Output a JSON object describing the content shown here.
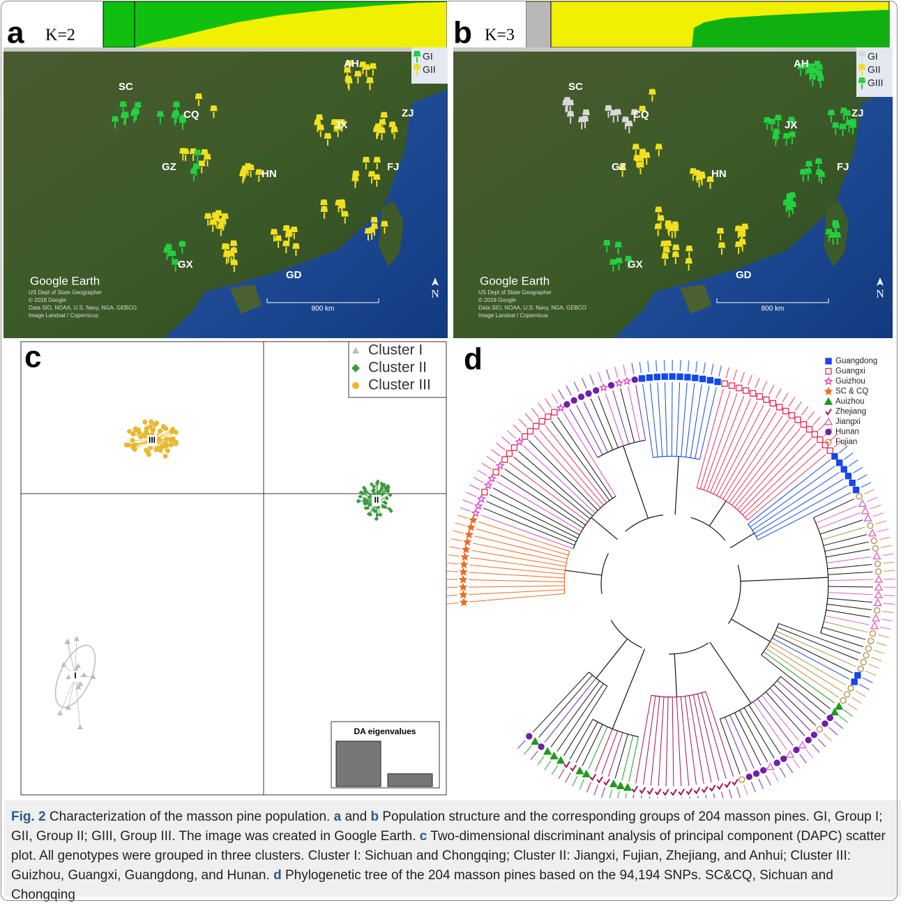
{
  "panels": {
    "a": {
      "label": "a",
      "k": "K=2",
      "regions": [
        "SC",
        "CQ",
        "GZ",
        "HN",
        "AH",
        "JX",
        "ZJ",
        "FJ",
        "GD",
        "GX"
      ],
      "legend": [
        {
          "name": "GI",
          "color": "#22d040"
        },
        {
          "name": "GII",
          "color": "#f0e020"
        }
      ],
      "watermark": "Google Earth",
      "credits": [
        "US Dept of State Geographer",
        "© 2018 Google",
        "Data SIO, NOAA, U.S. Navy, NGA, GEBCO",
        "Image Landsat / Copernicus"
      ],
      "scale": "800 km",
      "north": "N"
    },
    "b": {
      "label": "b",
      "k": "K=3",
      "regions": [
        "SC",
        "CQ",
        "GZ",
        "HN",
        "AH",
        "JX",
        "ZJ",
        "FJ",
        "GD",
        "GX"
      ],
      "legend": [
        {
          "name": "GI",
          "color": "#d8d8d8"
        },
        {
          "name": "GII",
          "color": "#f0e020"
        },
        {
          "name": "GIII",
          "color": "#22d040"
        }
      ],
      "watermark": "Google Earth",
      "credits": [
        "US Dept of State Geographer",
        "© 2018 Google",
        "Data SIO, NOAA, U.S. Navy, NGA, GEBCO",
        "Image Landsat / Copernicus"
      ],
      "scale": "800 km",
      "north": "N"
    },
    "c": {
      "label": "c",
      "legend": [
        {
          "name": "Cluster I",
          "color": "#bbbbbb"
        },
        {
          "name": "Cluster II",
          "color": "#3a9a40"
        },
        {
          "name": "Cluster III",
          "color": "#e8b830"
        }
      ],
      "cluster_labels": [
        "I",
        "II",
        "III"
      ],
      "eigen_title": "DA eigenvalues",
      "eigenvalues": [
        100,
        28
      ]
    },
    "d": {
      "label": "d",
      "legend": [
        {
          "name": "Guangdong",
          "color": "#1448e8",
          "marker": "square"
        },
        {
          "name": "Guangxi",
          "color": "#e8305a",
          "marker": "open-square"
        },
        {
          "name": "Guizhou",
          "color": "#e040c8",
          "marker": "open-star"
        },
        {
          "name": "SC & CQ",
          "color": "#f06a20",
          "marker": "star"
        },
        {
          "name": "Auizhou",
          "color": "#1e9a1e",
          "marker": "triangle"
        },
        {
          "name": "Zhejiang",
          "color": "#a8104a",
          "marker": "check"
        },
        {
          "name": "Jiangxi",
          "color": "#e060c8",
          "marker": "open-triangle"
        },
        {
          "name": "Hunan",
          "color": "#7020a8",
          "marker": "circle"
        },
        {
          "name": "Fujian",
          "color": "#b8904a",
          "marker": "open-circle"
        }
      ]
    }
  },
  "caption": [
    {
      "text": "Fig. 2",
      "bold": true
    },
    {
      "text": " Characterization of the masson pine population. ",
      "bold": false
    },
    {
      "text": "a",
      "bold": true
    },
    {
      "text": " and ",
      "bold": false
    },
    {
      "text": "b",
      "bold": true
    },
    {
      "text": " Population structure and the corresponding groups of 204 masson pines. GI, Group I; GII, Group II; GIII, Group III. The image was created in Google Earth. ",
      "bold": false
    },
    {
      "text": "c",
      "bold": true
    },
    {
      "text": " Two-dimensional discriminant analysis of principal component (DAPC) scatter plot. All genotypes were grouped in three clusters. Cluster I: Sichuan and Chongqing; Cluster II: Jiangxi, Fujian, Zhejiang, and Anhui; Cluster III: Guizhou, Guangxi, Guangdong, and Hunan. ",
      "bold": false
    },
    {
      "text": "d",
      "bold": true
    },
    {
      "text": " Phylogenetic tree of the 204 masson pines based on the 94,194 SNPs. SC&CQ, Sichuan and Chongqing",
      "bold": false
    }
  ]
}
